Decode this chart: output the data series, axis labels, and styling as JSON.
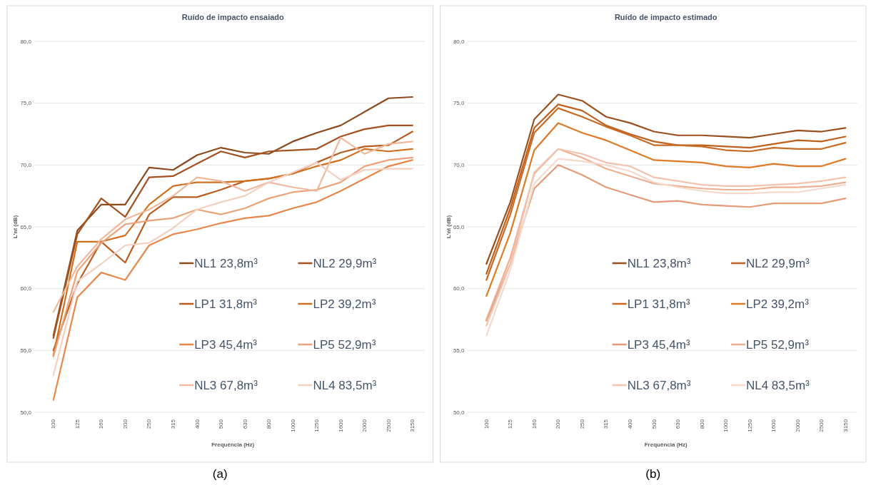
{
  "chart_data": [
    {
      "type": "line",
      "title": "Ruído de impacto ensaiado",
      "xlabel": "Frequência (Hz)",
      "ylabel": "L'nt (dB)",
      "annotations": [
        "(a)"
      ],
      "categories": [
        "100",
        "125",
        "160",
        "200",
        "250",
        "315",
        "400",
        "500",
        "630",
        "800",
        "1000",
        "1250",
        "1600",
        "2000",
        "2500",
        "3150"
      ],
      "ylim": [
        50,
        80
      ],
      "yticks": [
        {
          "value": 50,
          "label": "50,0"
        },
        {
          "value": 55,
          "label": "55,0"
        },
        {
          "value": 60,
          "label": "60,0"
        },
        {
          "value": 65,
          "label": "65,0"
        },
        {
          "value": 70,
          "label": "70,0"
        },
        {
          "value": 75,
          "label": "75,0"
        },
        {
          "value": 80,
          "label": "80,0"
        }
      ],
      "grid": "y",
      "legend": "bottom right",
      "marker": "none",
      "line_style": "solid",
      "series": [
        {
          "name": "NL1 23,8m³",
          "color": "#8c4a1c",
          "values": [
            56.2,
            64.7,
            66.8,
            66.8,
            69.8,
            69.6,
            70.8,
            71.4,
            71.0,
            70.9,
            71.9,
            72.6,
            73.2,
            74.3,
            75.4,
            75.5
          ]
        },
        {
          "name": "NL2 29,9m³",
          "color": "#a5511f",
          "values": [
            56.0,
            64.4,
            67.3,
            65.8,
            69.0,
            69.1,
            70.1,
            71.1,
            70.6,
            71.1,
            71.2,
            71.3,
            72.3,
            72.9,
            73.2,
            73.2
          ]
        },
        {
          "name": "LP1 31,8m³",
          "color": "#b85c20",
          "values": [
            55.0,
            60.4,
            63.8,
            62.1,
            66.0,
            67.4,
            67.4,
            68.0,
            68.7,
            68.9,
            69.3,
            70.2,
            71.0,
            71.5,
            71.6,
            72.7
          ]
        },
        {
          "name": "LP2 39,2m³",
          "color": "#d0701f",
          "values": [
            54.6,
            63.8,
            63.8,
            64.3,
            66.8,
            68.3,
            68.6,
            68.6,
            68.7,
            68.9,
            69.3,
            69.9,
            70.4,
            71.3,
            71.1,
            71.3
          ]
        },
        {
          "name": "LP3 45,4m³",
          "color": "#e8874a",
          "values": [
            51.0,
            59.3,
            61.3,
            60.7,
            63.5,
            64.4,
            64.8,
            65.3,
            65.7,
            65.9,
            66.5,
            67.0,
            67.9,
            68.9,
            69.9,
            70.4
          ]
        },
        {
          "name": "LP5 52,9m³",
          "color": "#eca27a",
          "values": [
            54.5,
            61.4,
            63.7,
            65.2,
            65.5,
            65.7,
            66.4,
            66.0,
            66.5,
            67.3,
            67.8,
            68.0,
            68.6,
            69.9,
            70.4,
            70.6
          ]
        },
        {
          "name": "NL3 67,8m³",
          "color": "#f0b89c",
          "values": [
            58.1,
            61.8,
            64.0,
            65.6,
            66.4,
            67.5,
            69.0,
            68.7,
            67.9,
            68.6,
            68.2,
            67.9,
            72.2,
            70.9,
            71.7,
            71.9
          ]
        },
        {
          "name": "NL4 83,5m³",
          "color": "#f5cfc0",
          "values": [
            53.0,
            60.6,
            62.0,
            63.5,
            63.7,
            64.9,
            66.4,
            67.0,
            67.5,
            68.6,
            69.4,
            70.2,
            68.8,
            69.6,
            69.7,
            69.7
          ]
        }
      ]
    },
    {
      "type": "line",
      "title": "Ruído de impacto estimado",
      "xlabel": "Frequência (Hz)",
      "ylabel": "L'nt (dB)",
      "annotations": [
        "(b)"
      ],
      "categories": [
        "100",
        "125",
        "160",
        "200",
        "250",
        "315",
        "400",
        "500",
        "630",
        "800",
        "1000",
        "1250",
        "1600",
        "2000",
        "2500",
        "3150"
      ],
      "ylim": [
        50,
        80
      ],
      "yticks": [
        {
          "value": 50,
          "label": "50,0"
        },
        {
          "value": 55,
          "label": "55,0"
        },
        {
          "value": 60,
          "label": "60,0"
        },
        {
          "value": 65,
          "label": "65,0"
        },
        {
          "value": 70,
          "label": "70,0"
        },
        {
          "value": 75,
          "label": "75,0"
        },
        {
          "value": 80,
          "label": "80,0"
        }
      ],
      "grid": "y",
      "legend": "bottom right",
      "marker": "none",
      "line_style": "solid",
      "series": [
        {
          "name": "NL1 23,8m³",
          "color": "#9a4f1e",
          "values": [
            62.0,
            67.0,
            73.7,
            75.7,
            75.2,
            73.9,
            73.4,
            72.7,
            72.4,
            72.4,
            72.3,
            72.2,
            72.5,
            72.8,
            72.7,
            73.0
          ]
        },
        {
          "name": "NL2 29,9m³",
          "color": "#c0601f",
          "values": [
            61.2,
            66.5,
            73.0,
            74.9,
            74.4,
            73.2,
            72.5,
            71.9,
            71.6,
            71.6,
            71.5,
            71.4,
            71.7,
            72.0,
            71.9,
            72.3
          ]
        },
        {
          "name": "LP1 31,8m³",
          "color": "#c96a22",
          "values": [
            60.7,
            66.0,
            72.6,
            74.6,
            73.9,
            73.1,
            72.4,
            71.6,
            71.6,
            71.5,
            71.2,
            71.1,
            71.4,
            71.3,
            71.3,
            71.8
          ]
        },
        {
          "name": "LP2 39,2m³",
          "color": "#dd7a26",
          "values": [
            59.4,
            64.5,
            71.2,
            73.4,
            72.6,
            72.0,
            71.2,
            70.4,
            70.3,
            70.2,
            69.9,
            69.8,
            70.1,
            69.9,
            69.9,
            70.5
          ]
        },
        {
          "name": "LP3 45,4m³",
          "color": "#e59a78",
          "values": [
            57.4,
            62.0,
            68.1,
            70.0,
            69.2,
            68.2,
            67.6,
            67.0,
            67.1,
            66.8,
            66.7,
            66.6,
            66.9,
            66.9,
            66.9,
            67.3
          ]
        },
        {
          "name": "LP5 52,9m³",
          "color": "#eeae90",
          "values": [
            57.5,
            62.5,
            69.3,
            71.3,
            70.6,
            69.7,
            69.1,
            68.5,
            68.3,
            68.1,
            68.0,
            68.0,
            68.2,
            68.2,
            68.3,
            68.6
          ]
        },
        {
          "name": "NL3 67,8m³",
          "color": "#f2c3ae",
          "values": [
            57.0,
            62.0,
            69.4,
            71.3,
            70.9,
            70.2,
            69.9,
            69.0,
            68.7,
            68.4,
            68.3,
            68.3,
            68.4,
            68.5,
            68.7,
            69.0
          ]
        },
        {
          "name": "NL4 83,5m³",
          "color": "#f6d9cc",
          "values": [
            56.2,
            61.5,
            68.5,
            70.5,
            70.3,
            70.0,
            69.5,
            68.6,
            68.2,
            67.9,
            67.7,
            67.7,
            67.8,
            67.8,
            68.1,
            68.4
          ]
        }
      ]
    }
  ]
}
